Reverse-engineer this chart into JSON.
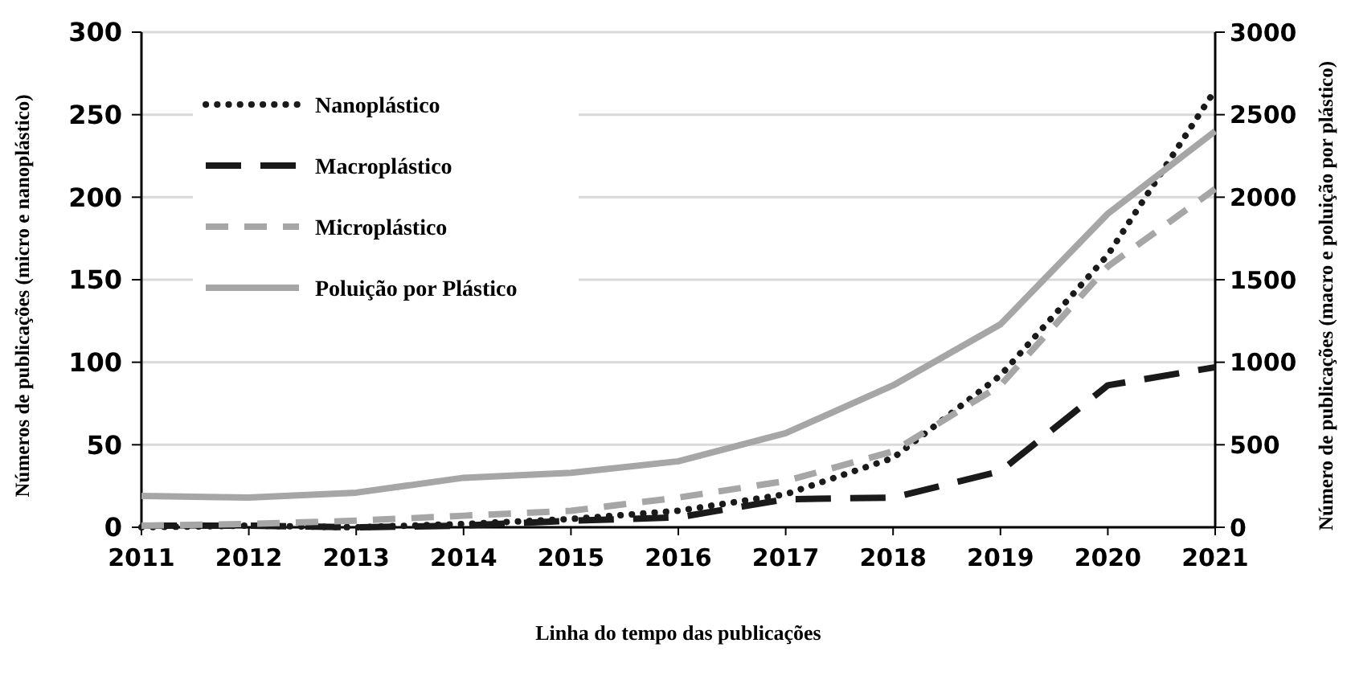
{
  "chart_data": {
    "type": "line",
    "xlabel": "Linha do tempo das publicações",
    "ylabel": "Números de publicações (micro e nanoplástico)",
    "y2label": "Número de publicações (macro e poluição por plástico)",
    "x": [
      2011,
      2012,
      2013,
      2014,
      2015,
      2016,
      2017,
      2018,
      2019,
      2020,
      2021
    ],
    "xlim": [
      2011,
      2021
    ],
    "xticks": [
      2011,
      2012,
      2013,
      2014,
      2015,
      2016,
      2017,
      2018,
      2019,
      2020,
      2021
    ],
    "ylim": [
      0,
      300
    ],
    "yticks": [
      0,
      50,
      100,
      150,
      200,
      250,
      300
    ],
    "y2lim": [
      0,
      3000
    ],
    "y2ticks": [
      0,
      500,
      1000,
      1500,
      2000,
      2500,
      3000
    ],
    "grid": "y",
    "legend": "top left",
    "series": [
      {
        "name": "Nanoplástico",
        "color": "#1a1a1a",
        "line_style": "dotted",
        "values": [
          0,
          1,
          0,
          2,
          5,
          10,
          20,
          42,
          92,
          165,
          265
        ]
      },
      {
        "name": "Macroplástico",
        "color": "#1a1a1a",
        "line_style": "dashed",
        "axis": "y2",
        "values": [
          10,
          10,
          0,
          10,
          40,
          60,
          170,
          180,
          340,
          860,
          970
        ]
      },
      {
        "name": "Microplástico",
        "color": "#a6a6a6",
        "line_style": "dashed",
        "values": [
          1,
          2,
          4,
          7,
          10,
          18,
          28,
          46,
          86,
          158,
          205
        ]
      },
      {
        "name": "Poluição por Plástico",
        "color": "#a6a6a6",
        "line_style": "solid",
        "axis": "y2",
        "values": [
          190,
          180,
          210,
          300,
          330,
          400,
          570,
          860,
          1230,
          1900,
          2400
        ]
      }
    ]
  }
}
